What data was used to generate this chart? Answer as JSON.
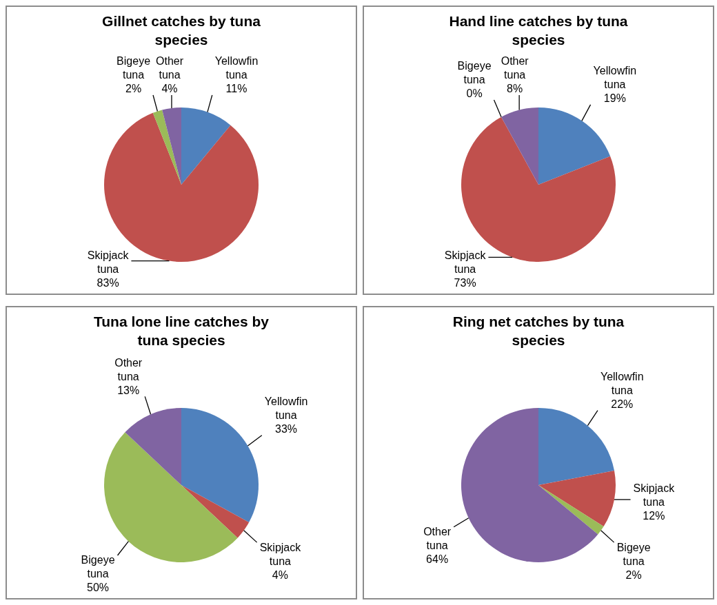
{
  "chart_data": [
    {
      "type": "pie",
      "title": "Gillnet catches by tuna species",
      "categories": [
        "Yellowfin tuna",
        "Skipjack tuna",
        "Bigeye tuna",
        "Other tuna"
      ],
      "values": [
        11,
        83,
        2,
        4
      ],
      "colors": [
        "#4f81bd",
        "#c0504d",
        "#9bbb59",
        "#8064a2"
      ],
      "value_labels": [
        "11%",
        "83%",
        "2%",
        "4%"
      ]
    },
    {
      "type": "pie",
      "title": "Hand line catches by tuna species",
      "categories": [
        "Yellowfin tuna",
        "Skipjack tuna",
        "Bigeye tuna",
        "Other tuna"
      ],
      "values": [
        19,
        73,
        0,
        8
      ],
      "colors": [
        "#4f81bd",
        "#c0504d",
        "#9bbb59",
        "#8064a2"
      ],
      "value_labels": [
        "19%",
        "73%",
        "0%",
        "8%"
      ]
    },
    {
      "type": "pie",
      "title": "Tuna lone line catches by tuna species",
      "categories": [
        "Yellowfin tuna",
        "Skipjack tuna",
        "Bigeye tuna",
        "Other tuna"
      ],
      "values": [
        33,
        4,
        50,
        13
      ],
      "colors": [
        "#4f81bd",
        "#c0504d",
        "#9bbb59",
        "#8064a2"
      ],
      "value_labels": [
        "33%",
        "4%",
        "50%",
        "13%"
      ]
    },
    {
      "type": "pie",
      "title": "Ring net catches by tuna species",
      "categories": [
        "Yellowfin tuna",
        "Skipjack tuna",
        "Bigeye tuna",
        "Other tuna"
      ],
      "values": [
        22,
        12,
        2,
        64
      ],
      "colors": [
        "#4f81bd",
        "#c0504d",
        "#9bbb59",
        "#8064a2"
      ],
      "value_labels": [
        "22%",
        "12%",
        "2%",
        "64%"
      ]
    }
  ]
}
